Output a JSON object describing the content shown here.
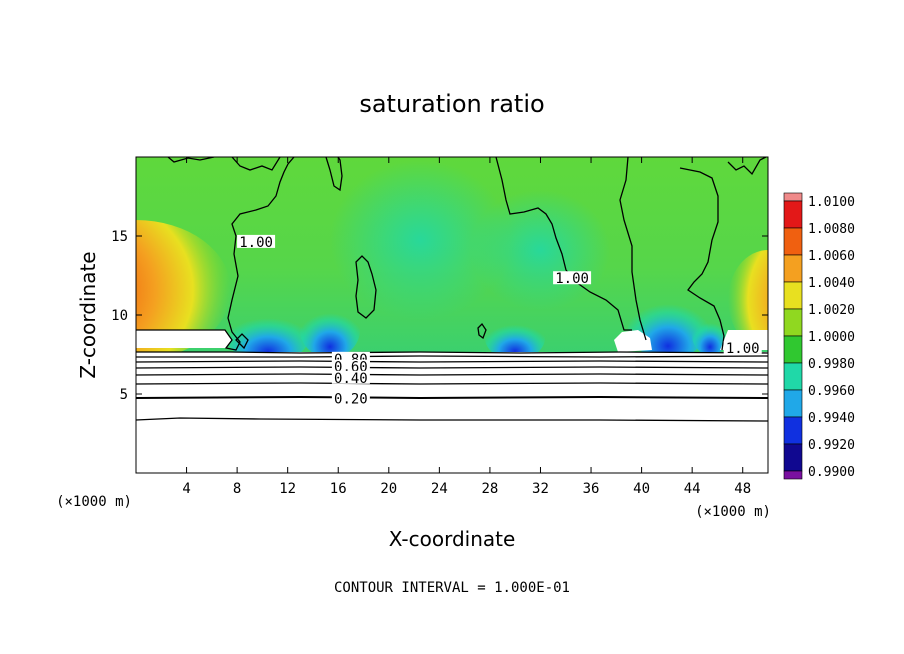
{
  "chart_data": {
    "type": "heatmap",
    "title": "saturation ratio",
    "xlabel": "X-coordinate",
    "ylabel": "Z-coordinate",
    "x_unit": "(×1000 m)",
    "z_unit": "(×1000 m)",
    "xlim": [
      0,
      50
    ],
    "ylim": [
      0,
      20
    ],
    "x_ticks": [
      4,
      8,
      12,
      16,
      20,
      24,
      28,
      32,
      36,
      40,
      44,
      48
    ],
    "y_ticks": [
      5,
      10,
      15
    ],
    "colorbar": {
      "levels": [
        "1.0100",
        "1.0080",
        "1.0060",
        "1.0040",
        "1.0020",
        "1.0000",
        "0.9980",
        "0.9960",
        "0.9940",
        "0.9920",
        "0.9900"
      ],
      "colors": [
        "#f08a8a",
        "#e31818",
        "#f06010",
        "#f4a020",
        "#e8e020",
        "#90d820",
        "#30c830",
        "#20d8a8",
        "#20a8e8",
        "#1030e0",
        "#100890",
        "#7a10a0"
      ]
    },
    "contour_labels": [
      {
        "text": "1.00",
        "x": 9.5,
        "z": 14.5
      },
      {
        "text": "1.00",
        "x": 34.5,
        "z": 12.2
      },
      {
        "text": "1.00",
        "x": 48.0,
        "z": 7.8
      },
      {
        "text": "0.80",
        "x": 17.0,
        "z": 7.1
      },
      {
        "text": "0.60",
        "x": 17.0,
        "z": 6.6
      },
      {
        "text": "0.40",
        "x": 17.0,
        "z": 5.9
      },
      {
        "text": "0.20",
        "x": 17.0,
        "z": 4.6
      }
    ],
    "contour_interval_label": "CONTOUR INTERVAL = 1.000E-01"
  }
}
